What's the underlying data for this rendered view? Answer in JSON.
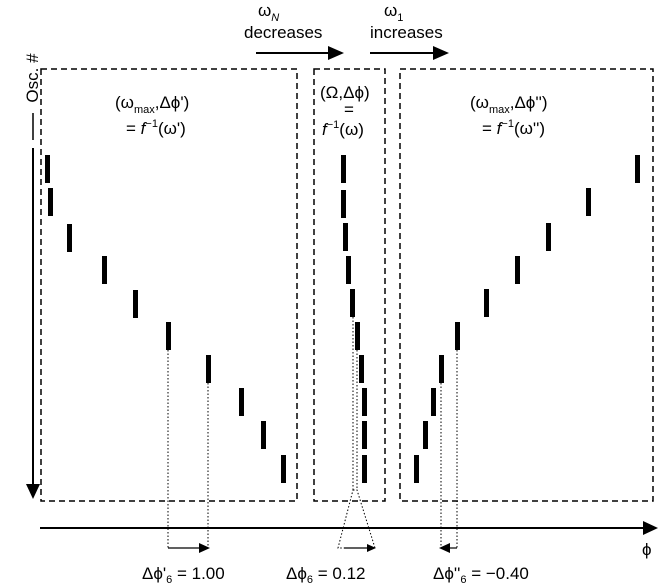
{
  "top_arrows": {
    "left": {
      "symbol": "ω",
      "subscript": "N",
      "word": "decreases"
    },
    "right": {
      "symbol": "ω",
      "subscript": "1",
      "word": "increases"
    }
  },
  "y_axis": {
    "label": "Osc. #"
  },
  "x_axis": {
    "label": "ϕ"
  },
  "panels": {
    "left": {
      "line1": {
        "open": "(ω",
        "sub": "max",
        "mid": ",Δϕ'",
        "close": ")"
      },
      "line2": {
        "pre": "= ",
        "f": "f",
        "sup": "−1",
        "arg": "(ω')"
      }
    },
    "middle": {
      "line1": "(Ω,Δϕ)",
      "line2": "=",
      "line3": {
        "f": "f",
        "sup": "−1",
        "arg": "(ω)"
      }
    },
    "right": {
      "line1": {
        "open": "(ω",
        "sub": "max",
        "mid": ",Δϕ''",
        "close": ")"
      },
      "line2": {
        "pre": "= ",
        "f": "f",
        "sup": "−1",
        "arg": "(ω'')"
      }
    }
  },
  "bottom_labels": {
    "left": {
      "pre": "Δϕ'",
      "sub": "6",
      "post": " = 1.00"
    },
    "middle": {
      "pre": "Δϕ",
      "sub": "6",
      "post": " = 0.12"
    },
    "right": {
      "pre": "Δϕ''",
      "sub": "6",
      "post": " = −0.40"
    }
  }
}
